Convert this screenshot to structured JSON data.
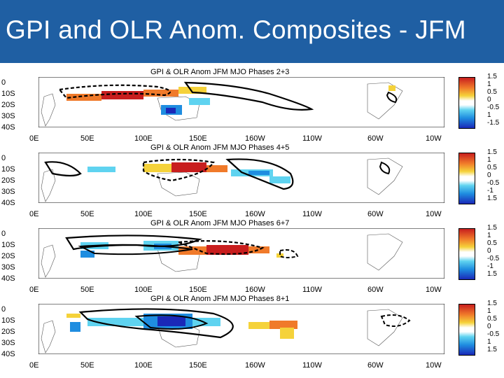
{
  "slide": {
    "title": "GPI and OLR Anom. Composites - JFM"
  },
  "panels": [
    {
      "title": "GPI & OLR Anom JFM   MJO Phases 2+3"
    },
    {
      "title": "GPI & OLR Anom JFM   MJO Phases 4+5"
    },
    {
      "title": "GPI & OLR Anom JFM   MJO Phases 6+7"
    },
    {
      "title": "GPI & OLR Anom JFM   MJO Phases 8+1"
    }
  ],
  "axes": {
    "lat_labels": [
      "0",
      "10S",
      "20S",
      "30S",
      "40S"
    ],
    "lon_labels": [
      "0E",
      "50E",
      "100E",
      "150E",
      "160W",
      "110W",
      "60W",
      "10W"
    ]
  },
  "colorbars": [
    {
      "labels": [
        "1.5",
        "1",
        "0.5",
        "0",
        "-0.5",
        "1",
        "-1.5"
      ]
    },
    {
      "labels": [
        "1.5",
        "1",
        "0.5",
        "0",
        "-0.5",
        "-1",
        "1.5"
      ]
    },
    {
      "labels": [
        "1.5",
        "1",
        "0.5",
        "0",
        "-0.5",
        "-1",
        "1.5"
      ]
    },
    {
      "labels": [
        "1.5",
        "1",
        "0.5",
        "0",
        "-0.5",
        "1",
        "1.5"
      ]
    }
  ],
  "colors": {
    "title_bar": "#1f5fa3",
    "title_text": "#ffffff",
    "positive_high": "#c81e1e",
    "positive_mid": "#f07a2a",
    "positive_low": "#f5d23a",
    "negative_low": "#5fd3f0",
    "negative_mid": "#1f8de0",
    "negative_high": "#1a28b8"
  }
}
